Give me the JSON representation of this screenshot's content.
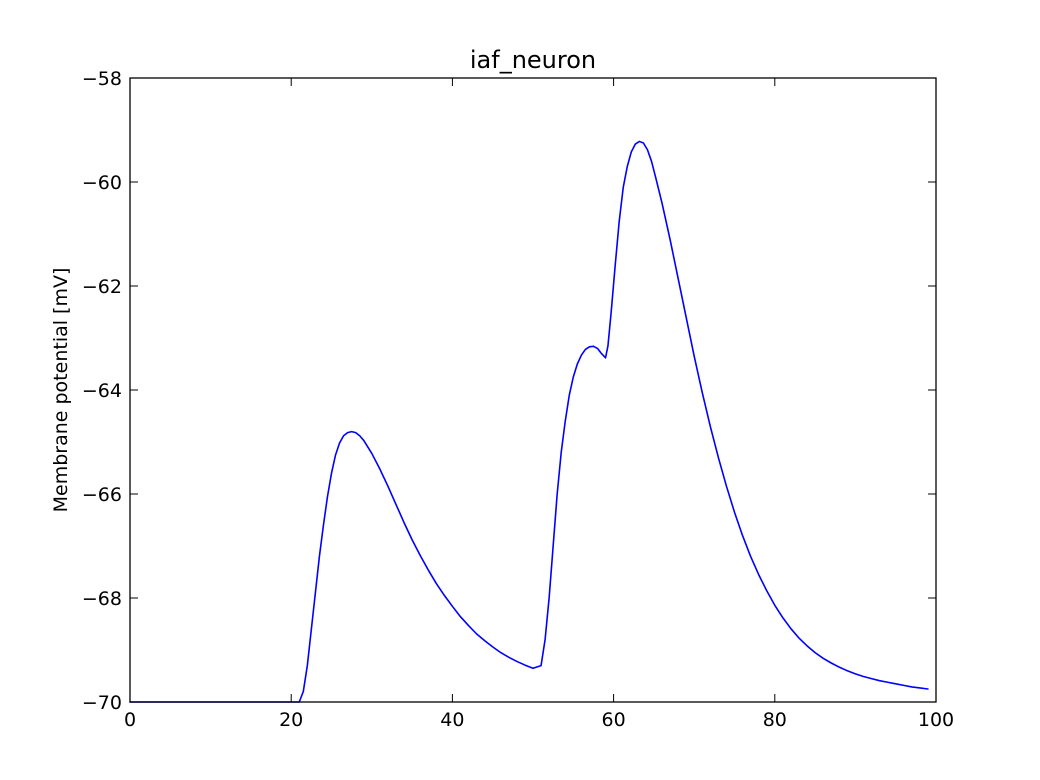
{
  "chart_data": {
    "type": "line",
    "title": "iaf_neuron",
    "xlabel": "",
    "ylabel": "Membrane potential [mV]",
    "xlim": [
      0,
      100
    ],
    "ylim": [
      -70,
      -58
    ],
    "xticks": [
      0,
      20,
      40,
      60,
      80,
      100
    ],
    "yticks": [
      -70,
      -68,
      -66,
      -64,
      -62,
      -60,
      -58
    ],
    "xtick_labels": [
      "0",
      "20",
      "40",
      "60",
      "80",
      "100"
    ],
    "ytick_labels": [
      "−70",
      "−68",
      "−66",
      "−64",
      "−62",
      "−60",
      "−58"
    ],
    "grid": false,
    "series": [
      {
        "color": "#0000ff",
        "x": [
          0,
          21,
          21.5,
          22,
          22.5,
          23,
          23.5,
          24,
          24.5,
          25,
          25.5,
          26,
          26.5,
          27,
          27.5,
          28,
          28.5,
          29,
          30,
          31,
          32,
          33,
          34,
          35,
          36,
          37,
          38,
          39,
          40,
          41,
          42,
          43,
          44,
          45,
          46,
          47,
          48,
          49,
          50,
          51,
          51.5,
          52,
          52.5,
          53,
          53.5,
          54,
          54.5,
          55,
          55.5,
          56,
          56.5,
          57,
          57.5,
          58,
          58.5,
          59,
          59.3,
          59.7,
          60.2,
          60.7,
          61.2,
          61.7,
          62.2,
          62.7,
          63.2,
          63.7,
          64.2,
          64.7,
          65.2,
          66,
          67,
          68,
          69,
          70,
          71,
          72,
          73,
          74,
          75,
          76,
          77,
          78,
          79,
          80,
          81,
          82,
          83,
          84,
          85,
          86,
          87,
          88,
          89,
          90,
          91,
          92,
          93,
          94,
          95,
          96,
          97,
          98,
          99
        ],
        "y": [
          -70,
          -70,
          -69.8,
          -69.3,
          -68.6,
          -67.9,
          -67.2,
          -66.6,
          -66.05,
          -65.6,
          -65.25,
          -65.02,
          -64.88,
          -64.82,
          -64.8,
          -64.82,
          -64.88,
          -64.97,
          -65.22,
          -65.52,
          -65.85,
          -66.2,
          -66.55,
          -66.88,
          -67.18,
          -67.46,
          -67.72,
          -67.95,
          -68.16,
          -68.36,
          -68.53,
          -68.69,
          -68.82,
          -68.94,
          -69.05,
          -69.14,
          -69.22,
          -69.29,
          -69.35,
          -69.3,
          -68.8,
          -68.0,
          -67.0,
          -66.0,
          -65.2,
          -64.6,
          -64.1,
          -63.75,
          -63.5,
          -63.33,
          -63.22,
          -63.17,
          -63.16,
          -63.2,
          -63.3,
          -63.38,
          -63.15,
          -62.5,
          -61.6,
          -60.75,
          -60.1,
          -59.7,
          -59.42,
          -59.27,
          -59.22,
          -59.25,
          -59.38,
          -59.6,
          -59.9,
          -60.4,
          -61.1,
          -61.85,
          -62.6,
          -63.35,
          -64.05,
          -64.7,
          -65.3,
          -65.85,
          -66.35,
          -66.8,
          -67.2,
          -67.55,
          -67.86,
          -68.14,
          -68.38,
          -68.59,
          -68.77,
          -68.92,
          -69.05,
          -69.16,
          -69.25,
          -69.33,
          -69.4,
          -69.46,
          -69.51,
          -69.55,
          -69.59,
          -69.62,
          -69.65,
          -69.68,
          -69.71,
          -69.73,
          -69.75
        ]
      }
    ]
  }
}
